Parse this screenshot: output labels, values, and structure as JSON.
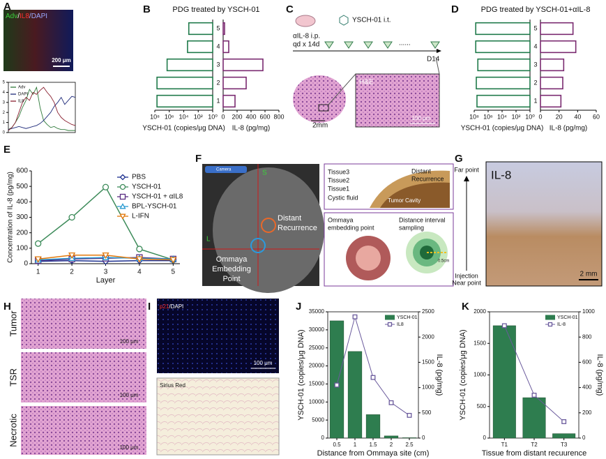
{
  "panel_labels": [
    "A",
    "B",
    "C",
    "D",
    "E",
    "F",
    "G",
    "H",
    "I",
    "J",
    "K"
  ],
  "panel_a": {
    "stain": [
      "Adv",
      "/",
      "IL8",
      "/DAPI"
    ],
    "scale_bar": "200 μm"
  },
  "panel_c": {
    "injection": "YSCH-01 i.t.",
    "treatment": [
      "αIL-8 i.p.",
      "qd x 14d"
    ],
    "ellipsis": "......",
    "endpoint": "D14",
    "scale_bar_whole": "2mm",
    "stain": "H&E",
    "scale_bar_zoom": "100 μm"
  },
  "panel_f": {
    "button": "Camera",
    "top": "S",
    "left": "L",
    "distant": [
      "Distant",
      "Recurrence"
    ],
    "ommaya": [
      "Ommaya",
      "Embedding",
      "Point"
    ],
    "tissues": [
      "Tissue3",
      "Tissue2",
      "Tissue1",
      "Cystic fluid"
    ],
    "inset_distant": [
      "Distant",
      "Recurrence"
    ],
    "cavity": "Tumor Cavity",
    "embedding": [
      "Ommaya",
      "embedding point"
    ],
    "sampling": [
      "Distance interval",
      "sampling"
    ],
    "interval": "0.5cm"
  },
  "panel_g": {
    "stain": "IL-8",
    "far": "Far point",
    "injection": "Injection",
    "near": "Near point",
    "scale_bar": "2 mm"
  },
  "panel_h": {
    "rows": [
      "Tumor",
      "TSR",
      "Necrotic"
    ],
    "scale_bar": "100 μm"
  },
  "panel_i": {
    "stain": [
      "p21",
      "/DAPI"
    ],
    "scale_bar": "100 μm",
    "stain2": "Sirius Red"
  },
  "chart_data": [
    {
      "type": "line",
      "frame": true,
      "legend": "upper left",
      "x": [
        0,
        1,
        2,
        3,
        4,
        5,
        6,
        7,
        8,
        9,
        10,
        11,
        12,
        13,
        14,
        15,
        16,
        17,
        18,
        19
      ],
      "xlim": [
        0,
        19
      ],
      "ylim": [
        0,
        5
      ],
      "yticks": [
        0,
        1,
        2,
        3,
        4,
        5
      ],
      "series": [
        {
          "name": "Adv",
          "color": "#2f7a3a",
          "values": [
            0.3,
            0.5,
            1.0,
            1.6,
            2.5,
            3.2,
            4.3,
            3.8,
            4.5,
            2.5,
            1.2,
            0.8,
            0.5,
            0.6,
            0.4,
            0.3,
            0.3,
            0.2,
            0.2,
            0.2
          ]
        },
        {
          "name": "DAPI",
          "color": "#1e2a7a",
          "values": [
            0.3,
            0.4,
            0.5,
            0.6,
            0.5,
            0.4,
            0.5,
            0.6,
            0.7,
            0.9,
            1.2,
            1.6,
            2.0,
            2.6,
            3.0,
            3.5,
            2.8,
            3.2,
            3.6,
            3.5
          ]
        },
        {
          "name": "IL8",
          "color": "#8a2030",
          "values": [
            0.2,
            0.5,
            1.0,
            2.0,
            3.0,
            3.5,
            3.2,
            4.0,
            3.8,
            4.2,
            4.5,
            4.0,
            3.6,
            3.0,
            2.0,
            1.5,
            1.2,
            1.0,
            0.8,
            0.7
          ]
        }
      ]
    },
    {
      "type": "barh",
      "title": "PDG treated by YSCH-01",
      "categories": [
        "1",
        "2",
        "3",
        "4",
        "5"
      ],
      "values": [
        50000000,
        50000000,
        2000000,
        3000,
        2000
      ],
      "color": "#1f7a4a",
      "xscale": "log",
      "xlim": [
        100000000,
        1
      ],
      "xticks": [
        {
          "value": 100000000,
          "label": "10⁸"
        },
        {
          "value": 1000000,
          "label": "10⁶"
        },
        {
          "value": 10000,
          "label": "10⁴"
        },
        {
          "value": 100,
          "label": "10²"
        },
        {
          "value": 1,
          "label": "10⁰"
        }
      ],
      "xlabel": "YSCH-01 (copies/μg DNA)"
    },
    {
      "type": "barh",
      "values": [
        170,
        330,
        570,
        80,
        20
      ],
      "color": "#7a2a70",
      "xlim": [
        0,
        800
      ],
      "xticks": [
        0,
        200,
        400,
        600,
        800
      ],
      "xlabel": "IL-8 (pg/mg)"
    },
    {
      "type": "barh",
      "title": "PDG treated by YSCH-01+αIL-8",
      "categories": [
        "1",
        "2",
        "3",
        "4",
        "5"
      ],
      "values": [
        40000000,
        50000000,
        30000000,
        60000000,
        60000000
      ],
      "color": "#1f7a4a",
      "xscale": "log",
      "xlim": [
        100000000,
        1
      ],
      "xticks": [
        {
          "value": 100000000,
          "label": "10⁸"
        },
        {
          "value": 1000000,
          "label": "10⁶"
        },
        {
          "value": 10000,
          "label": "10⁴"
        },
        {
          "value": 100,
          "label": "10²"
        },
        {
          "value": 1,
          "label": "10⁰"
        }
      ],
      "xlabel": "YSCH-01 (copies/μg DNA)"
    },
    {
      "type": "barh",
      "values": [
        22,
        24,
        25,
        38,
        35
      ],
      "color": "#7a2a70",
      "xlim": [
        0,
        60
      ],
      "xticks": [
        0,
        20,
        40,
        60
      ],
      "xlabel": "IL-8 (pg/mg)"
    },
    {
      "type": "line",
      "legend": "upper right",
      "x": [
        1,
        2,
        3,
        4,
        5
      ],
      "xlim": [
        0.8,
        5.2
      ],
      "xticks": [
        1,
        2,
        3,
        4,
        5
      ],
      "ylim": [
        0,
        600
      ],
      "yticks": [
        0,
        100,
        200,
        300,
        400,
        500,
        600
      ],
      "xlabel": "Layer",
      "ylabel": "Concentration of IL-8 (pg/mg)",
      "series": [
        {
          "name": "PBS",
          "color": "#1c2f8f",
          "marker": "diamond",
          "values": [
            15,
            20,
            15,
            20,
            20
          ]
        },
        {
          "name": "YSCH-01",
          "color": "#3d8b5a",
          "marker": "circle",
          "values": [
            130,
            300,
            495,
            95,
            25
          ]
        },
        {
          "name": "YSCH-01 + αIL8",
          "color": "#5a2d82",
          "marker": "square",
          "values": [
            20,
            30,
            35,
            40,
            30
          ]
        },
        {
          "name": "BPL-YSCH-01",
          "color": "#2b9bd1",
          "marker": "triangle",
          "values": [
            25,
            35,
            40,
            35,
            30
          ]
        },
        {
          "name": "L-IFN",
          "color": "#e2790c",
          "marker": "triangle-down",
          "values": [
            30,
            55,
            55,
            30,
            25
          ]
        }
      ]
    },
    {
      "type": "bar",
      "categories": [
        "0.5",
        "1",
        "1.5",
        "2",
        "2.5"
      ],
      "ylim": [
        0,
        35000
      ],
      "yticks": [
        0,
        5000,
        10000,
        15000,
        20000,
        25000,
        30000,
        35000
      ],
      "y2lim": [
        0,
        2500
      ],
      "y2ticks": [
        0,
        500,
        1000,
        1500,
        2000,
        2500
      ],
      "xlabel": "Distance from Ommaya site (cm)",
      "ylabel": "YSCH-01 (copies/μg DNA)",
      "y2label": "IL-8 (pg/mg)",
      "series": [
        {
          "name": "YSCH-01",
          "color": "#2e7d4f",
          "values": [
            32500,
            24000,
            6500,
            600,
            100
          ]
        },
        {
          "name": "IL8",
          "color": "#6a5a9c",
          "axis": "y2",
          "values": [
            1050,
            2400,
            1200,
            700,
            450
          ]
        }
      ]
    },
    {
      "type": "bar",
      "categories": [
        "T1",
        "T2",
        "T3"
      ],
      "ylim": [
        0,
        2000
      ],
      "yticks": [
        0,
        500,
        1000,
        1500,
        2000
      ],
      "y2lim": [
        0,
        1000
      ],
      "y2ticks": [
        0,
        200,
        400,
        600,
        800,
        1000
      ],
      "xlabel": "Tissue from distant recuurence",
      "ylabel": "YSCH-01 (copies/μg DNA)",
      "y2label": "IL-8 (pg/mg)",
      "series": [
        {
          "name": "YSCH-01",
          "color": "#2e7d4f",
          "values": [
            1780,
            640,
            70
          ]
        },
        {
          "name": "IL-8",
          "color": "#6a5a9c",
          "axis": "y2",
          "values": [
            890,
            340,
            130
          ]
        }
      ]
    }
  ]
}
